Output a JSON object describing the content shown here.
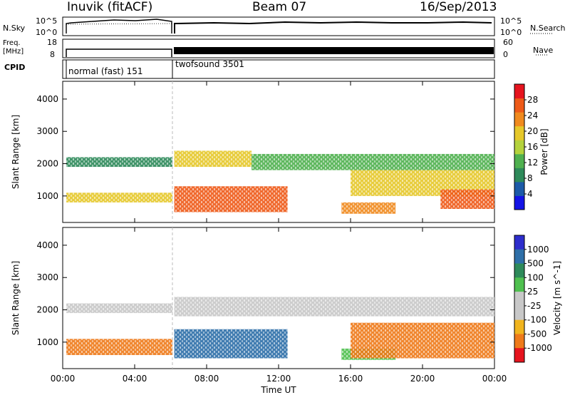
{
  "header": {
    "station": "Inuvik (fitACF)",
    "beam": "Beam 07",
    "date": "16/Sep/2013"
  },
  "strips": {
    "nsky_label": "N.Sky",
    "nsearch_label": "N.Search",
    "freq_label_1": "Freq.",
    "freq_label_2": "[MHz]",
    "nave_label": "Nave",
    "cpid_label": "CPID",
    "noise_ticks": [
      "10^5",
      "10^0"
    ],
    "noise_ticks_right": [
      "10^5",
      "10^0"
    ],
    "freq_ticks": [
      "18",
      "8"
    ],
    "nave_ticks": [
      "60",
      "0"
    ],
    "cpid_segments": [
      {
        "name": "normal (fast) 151",
        "start": 0.0,
        "end": 6.1
      },
      {
        "name": "twofsound 3501",
        "start": 6.1,
        "end": 24.0
      }
    ]
  },
  "colors": {
    "power_scale": [
      "#1414e6",
      "#1c5aa8",
      "#2e8a5a",
      "#4fb04f",
      "#b4d23c",
      "#e6c82a",
      "#f08a1e",
      "#ee5a18",
      "#e6141e"
    ],
    "velocity_scale": [
      "#2d2dcc",
      "#2e6fa8",
      "#2e8a5a",
      "#4fc04f",
      "#c8c8c8",
      "#c8c8c8",
      "#f0b41e",
      "#ee7a1a",
      "#e6141e"
    ]
  },
  "chart_data": [
    {
      "type": "heatmap",
      "title": "",
      "xlabel": "",
      "ylabel": "Slant Range [km]",
      "xlim": [
        "00:00",
        "24:00"
      ],
      "ylim": [
        180,
        4550
      ],
      "x_ticks": [
        "00:00",
        "04:00",
        "08:00",
        "12:00",
        "16:00",
        "20:00",
        "00:00"
      ],
      "y_ticks": [
        "1000",
        "2000",
        "3000",
        "4000"
      ],
      "colorbar_label": "Power [dB]",
      "colorbar_ticks": [
        "4",
        "8",
        "12",
        "16",
        "20",
        "24",
        "28"
      ],
      "colorbar_range": [
        0,
        32
      ],
      "series": [
        {
          "name": "",
          "range_km": [
            1100,
            800
          ],
          "hours": [
            0.2,
            6.1
          ],
          "value": 18
        },
        {
          "name": "",
          "range_km": [
            2200,
            1900
          ],
          "hours": [
            0.2,
            6.1
          ],
          "value": 10
        },
        {
          "name": "",
          "range_km": [
            1300,
            500
          ],
          "hours": [
            6.2,
            12.5
          ],
          "value": 28
        },
        {
          "name": "",
          "range_km": [
            2400,
            1900
          ],
          "hours": [
            6.2,
            10.5
          ],
          "value": 20
        },
        {
          "name": "",
          "range_km": [
            2300,
            1800
          ],
          "hours": [
            10.5,
            24.0
          ],
          "value": 12
        },
        {
          "name": "",
          "range_km": [
            800,
            450
          ],
          "hours": [
            15.5,
            18.5
          ],
          "value": 24
        },
        {
          "name": "",
          "range_km": [
            1800,
            1000
          ],
          "hours": [
            16.0,
            24.0
          ],
          "value": 20
        },
        {
          "name": "",
          "range_km": [
            1200,
            600
          ],
          "hours": [
            21.0,
            24.0
          ],
          "value": 28
        }
      ]
    },
    {
      "type": "heatmap",
      "title": "",
      "xlabel": "Time UT",
      "ylabel": "Slant Range [km]",
      "xlim": [
        "00:00",
        "24:00"
      ],
      "ylim": [
        180,
        4550
      ],
      "x_ticks": [
        "00:00",
        "04:00",
        "08:00",
        "12:00",
        "16:00",
        "20:00",
        "00:00"
      ],
      "y_ticks": [
        "1000",
        "2000",
        "3000",
        "4000"
      ],
      "colorbar_label": "Velocity [m s^-1]",
      "colorbar_ticks": [
        "1000",
        "500",
        "100",
        "25",
        "-25",
        "-100",
        "-500",
        "-1000"
      ],
      "series": [
        {
          "name": "",
          "range_km": [
            1100,
            600
          ],
          "hours": [
            0.2,
            6.1
          ],
          "value": -100
        },
        {
          "name": "",
          "range_km": [
            2200,
            1900
          ],
          "hours": [
            0.2,
            6.1
          ],
          "value": 0
        },
        {
          "name": "",
          "range_km": [
            1400,
            500
          ],
          "hours": [
            6.2,
            12.5
          ],
          "value": 250
        },
        {
          "name": "",
          "range_km": [
            2400,
            1800
          ],
          "hours": [
            6.2,
            24.0
          ],
          "value": 0
        },
        {
          "name": "",
          "range_km": [
            800,
            450
          ],
          "hours": [
            15.5,
            18.5
          ],
          "value": 100
        },
        {
          "name": "",
          "range_km": [
            1600,
            500
          ],
          "hours": [
            16.0,
            24.0
          ],
          "value": -300
        }
      ]
    }
  ]
}
